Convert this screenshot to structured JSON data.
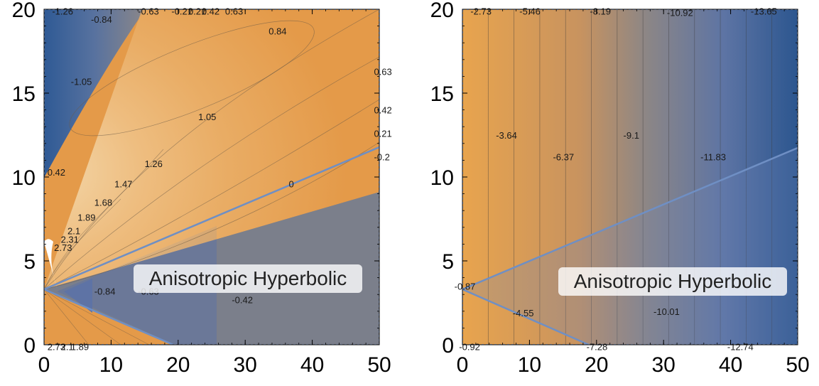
{
  "chart_data": [
    {
      "type": "contour",
      "title": "",
      "xlabel": "",
      "ylabel": "",
      "xlim": [
        0,
        50
      ],
      "ylim": [
        0,
        20
      ],
      "x_ticks": [
        0,
        10,
        20,
        30,
        40,
        50
      ],
      "y_ticks": [
        0,
        5,
        10,
        15,
        20
      ],
      "grid": false,
      "annotation": "Anisotropic Hyperbolic",
      "source_point": [
        0,
        3.3
      ],
      "wedge_lines": [
        {
          "from": [
            0,
            3.3
          ],
          "to": [
            50,
            11.8
          ]
        },
        {
          "from": [
            0,
            3.3
          ],
          "to": [
            19,
            0
          ]
        }
      ],
      "contour_labels": [
        {
          "text": "-1.26",
          "x": 1.2,
          "y": 19.9
        },
        {
          "text": "-0.84",
          "x": 7,
          "y": 19.4
        },
        {
          "text": "-0.63",
          "x": 14,
          "y": 19.9
        },
        {
          "text": "-0.21",
          "x": 19,
          "y": 19.9
        },
        {
          "text": "0.21",
          "x": 21.5,
          "y": 19.9
        },
        {
          "text": "0.42",
          "x": 23.5,
          "y": 19.9
        },
        {
          "text": "0.63",
          "x": 27,
          "y": 19.9
        },
        {
          "text": "0.84",
          "x": 33.5,
          "y": 18.7
        },
        {
          "text": "0.63",
          "x": 49.2,
          "y": 16.3
        },
        {
          "text": "-1.05",
          "x": 4,
          "y": 15.7
        },
        {
          "text": "1.05",
          "x": 23,
          "y": 13.6
        },
        {
          "text": "0.42",
          "x": 49.2,
          "y": 14.0
        },
        {
          "text": "0.21",
          "x": 49.2,
          "y": 12.6
        },
        {
          "text": "-0.2",
          "x": 49.2,
          "y": 11.2
        },
        {
          "text": "1.26",
          "x": 15,
          "y": 10.8
        },
        {
          "text": "0.42",
          "x": 0.5,
          "y": 10.3
        },
        {
          "text": "1.47",
          "x": 10.5,
          "y": 9.6
        },
        {
          "text": "0",
          "x": 36.5,
          "y": 9.6
        },
        {
          "text": "1.68",
          "x": 7.5,
          "y": 8.5
        },
        {
          "text": "1.89",
          "x": 5,
          "y": 7.6
        },
        {
          "text": "2.1",
          "x": 3.5,
          "y": 6.8
        },
        {
          "text": "2.31",
          "x": 2.5,
          "y": 6.3
        },
        {
          "text": "2.73",
          "x": 1.5,
          "y": 5.8
        },
        {
          "text": "-0.84",
          "x": 7.5,
          "y": 3.2
        },
        {
          "text": "-0.63",
          "x": 14,
          "y": 3.2
        },
        {
          "text": "-0.42",
          "x": 28,
          "y": 2.7
        },
        {
          "text": "2.73",
          "x": 0.5,
          "y": -0.1
        },
        {
          "text": "2.1",
          "x": 2.5,
          "y": -0.1
        },
        {
          "text": "1.89",
          "x": 4,
          "y": -0.1
        }
      ]
    },
    {
      "type": "contour",
      "title": "",
      "xlabel": "",
      "ylabel": "",
      "xlim": [
        0,
        50
      ],
      "ylim": [
        0,
        20
      ],
      "x_ticks": [
        0,
        10,
        20,
        30,
        40,
        50
      ],
      "y_ticks": [
        0,
        5,
        10,
        15,
        20
      ],
      "grid": false,
      "annotation": "Anisotropic Hyperbolic",
      "source_point": [
        0,
        3.3
      ],
      "wedge_lines": [
        {
          "from": [
            0,
            3.3
          ],
          "to": [
            50,
            11.8
          ]
        },
        {
          "from": [
            0,
            3.3
          ],
          "to": [
            19,
            0
          ]
        }
      ],
      "contour_labels": [
        {
          "text": "-2.73",
          "x": 1.2,
          "y": 19.9
        },
        {
          "text": "-5.46",
          "x": 8.5,
          "y": 19.9
        },
        {
          "text": "-8.19",
          "x": 19,
          "y": 19.9
        },
        {
          "text": "-10.92",
          "x": 30.5,
          "y": 19.8
        },
        {
          "text": "-13.65",
          "x": 43,
          "y": 19.9
        },
        {
          "text": "-3.64",
          "x": 5,
          "y": 12.5
        },
        {
          "text": "-9.1",
          "x": 24,
          "y": 12.5
        },
        {
          "text": "-6.37",
          "x": 13.5,
          "y": 11.2
        },
        {
          "text": "-11.83",
          "x": 35.5,
          "y": 11.2
        },
        {
          "text": "-0.87",
          "x": -1.2,
          "y": 3.5
        },
        {
          "text": "-4.55",
          "x": 7.5,
          "y": 1.9
        },
        {
          "text": "-10.01",
          "x": 28.5,
          "y": 2.0
        },
        {
          "text": "-7.28",
          "x": 18.5,
          "y": -0.1
        },
        {
          "text": "-12.74",
          "x": 39.5,
          "y": -0.1
        },
        {
          "text": "-0.92",
          "x": -0.5,
          "y": -0.1
        }
      ]
    }
  ]
}
